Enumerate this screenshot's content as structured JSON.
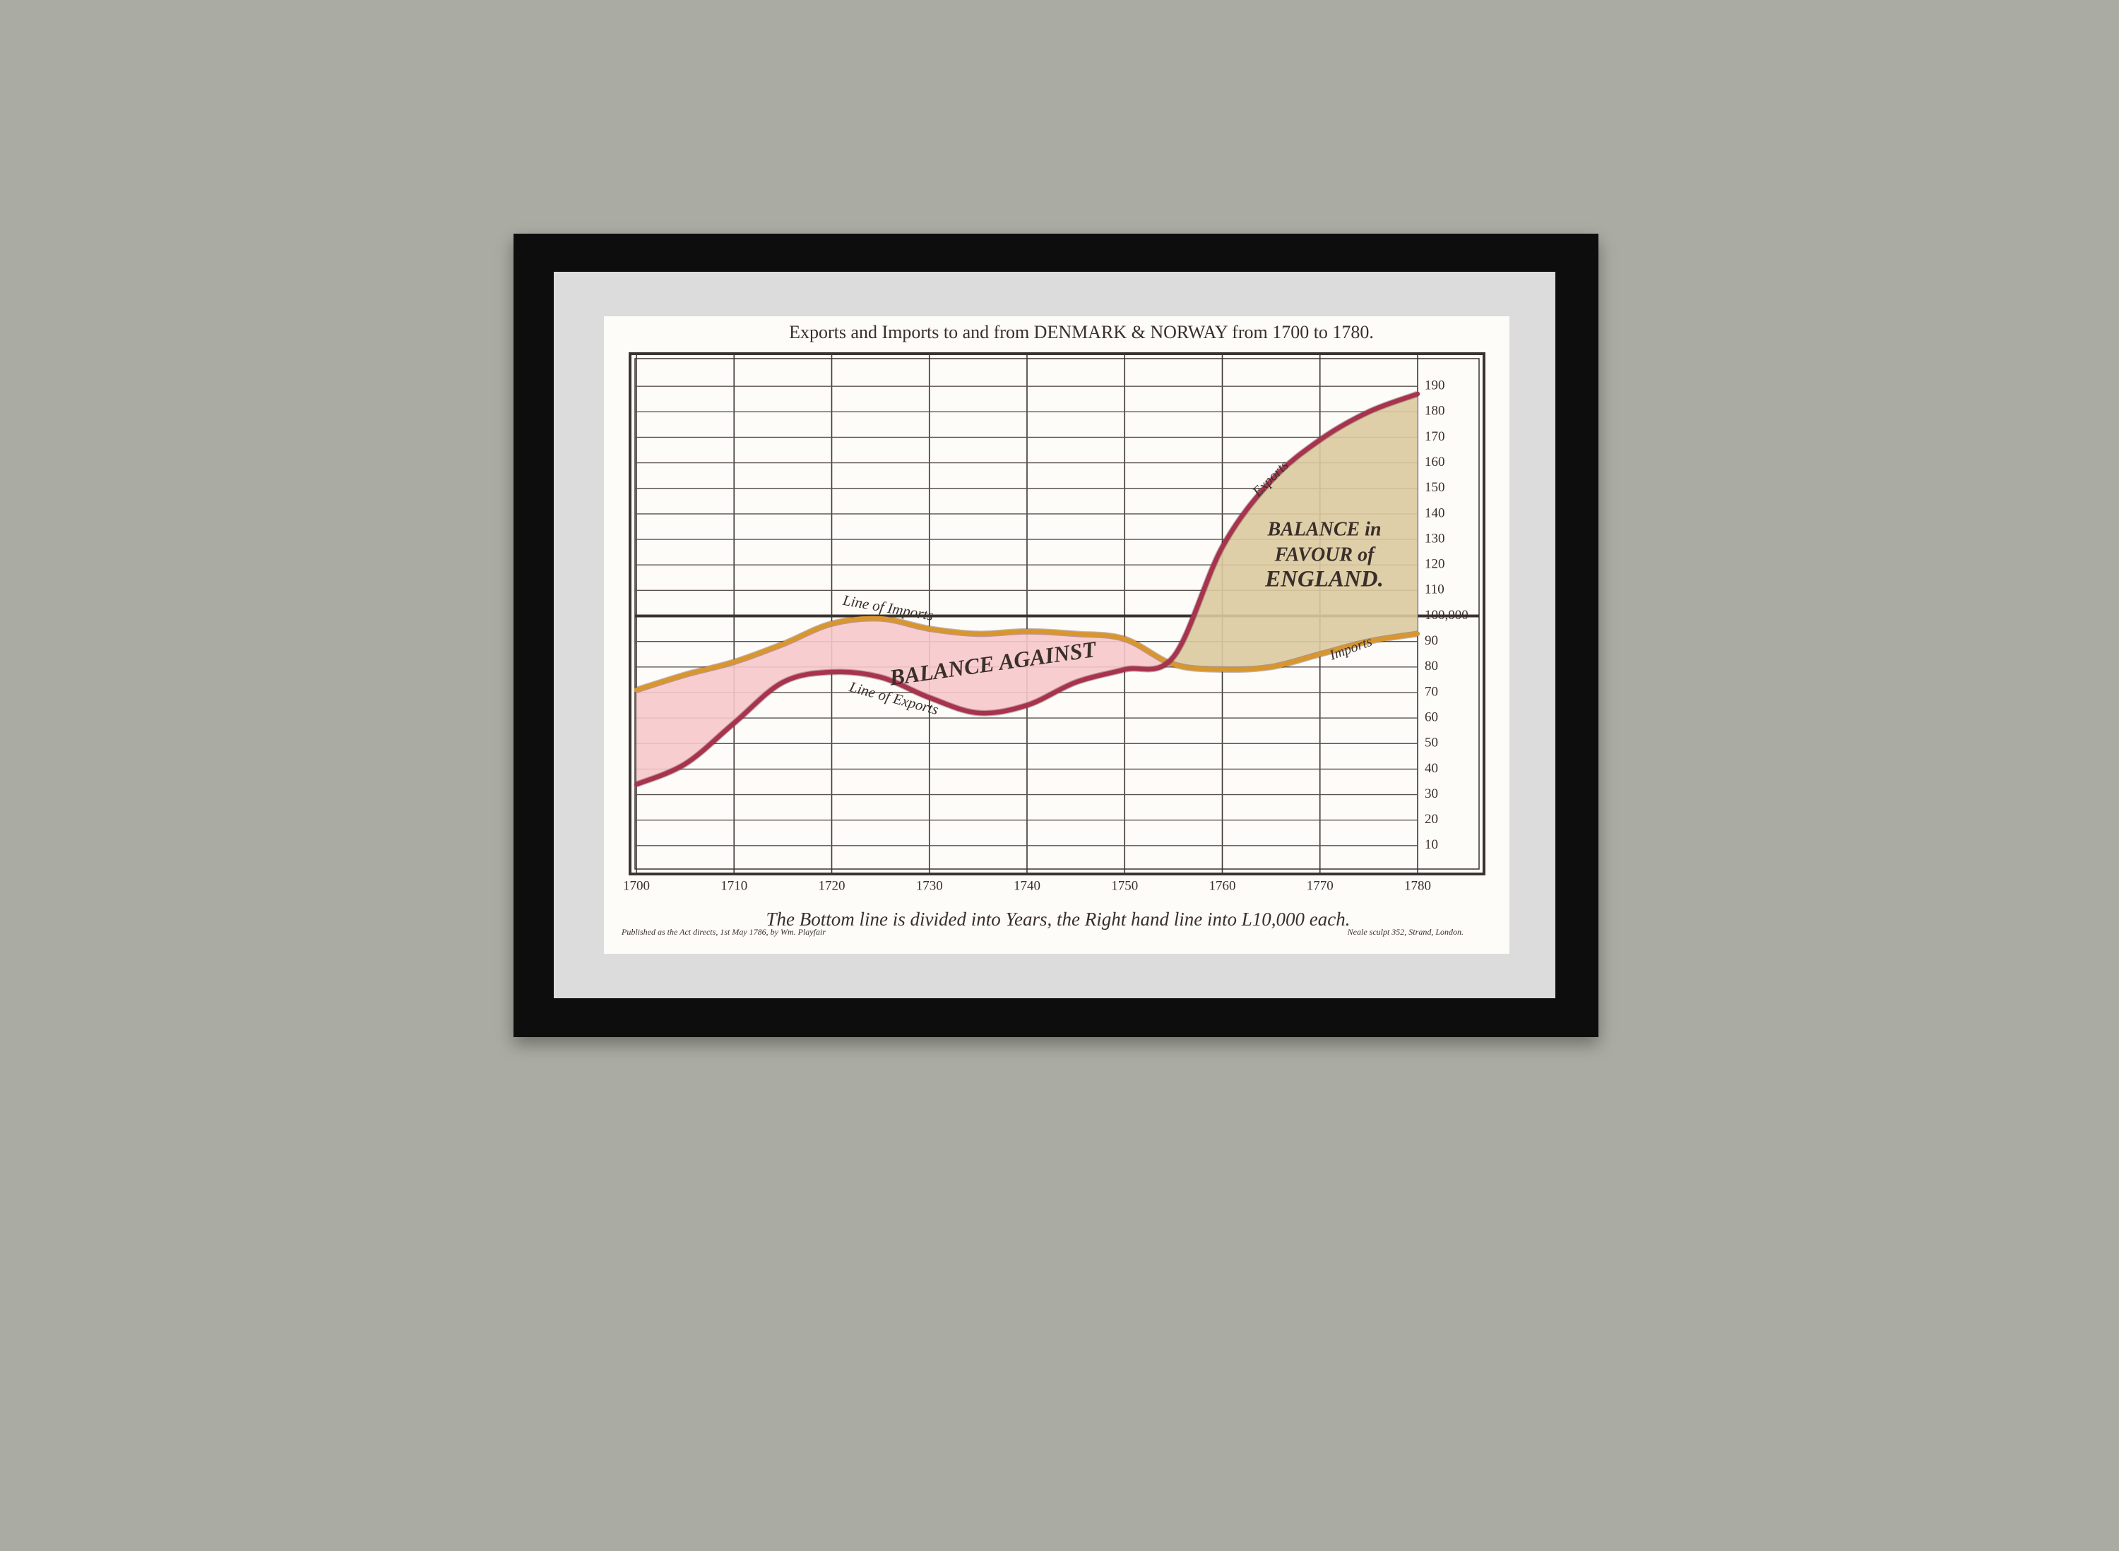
{
  "chart_data": {
    "type": "line",
    "title": "Exports and Imports to and from DENMARK & NORWAY from 1700 to 1780.",
    "note": "The Bottom line is divided into Years, the Right hand line into L10,000 each.",
    "footnote_left": "Published as the Act directs, 1st May 1786, by Wm. Playfair",
    "footnote_right": "Neale sculpt 352, Strand, London.",
    "annotations": [
      "BALANCE AGAINST",
      "BALANCE in",
      "FAVOUR of",
      "ENGLAND.",
      "Exports",
      "Imports"
    ],
    "x": [
      1700,
      1705,
      1710,
      1715,
      1720,
      1725,
      1730,
      1735,
      1740,
      1745,
      1750,
      1755,
      1760,
      1765,
      1770,
      1775,
      1780
    ],
    "series": [
      {
        "name": "Line of Imports",
        "color": "#d8962e",
        "values": [
          71,
          77,
          82,
          89,
          97,
          99,
          95,
          93,
          94,
          93,
          91,
          81,
          79,
          80,
          85,
          90,
          93
        ]
      },
      {
        "name": "Line of Exports",
        "color": "#a8334e",
        "values": [
          34,
          42,
          58,
          74,
          78,
          76,
          68,
          62,
          65,
          74,
          79,
          84,
          127,
          153,
          169,
          180,
          187
        ]
      }
    ],
    "fill_against": "#f6c8cb",
    "fill_favour": "#dccaa0",
    "xlim": [
      1700,
      1780
    ],
    "xticks": [
      1700,
      1710,
      1720,
      1730,
      1740,
      1750,
      1760,
      1770,
      1780
    ],
    "ylim": [
      0,
      200
    ],
    "yticks": [
      10,
      20,
      30,
      40,
      50,
      60,
      70,
      80,
      90,
      {
        "value": 100,
        "label": "100,000"
      },
      110,
      120,
      130,
      140,
      150,
      160,
      170,
      180,
      190
    ],
    "grid": true
  }
}
